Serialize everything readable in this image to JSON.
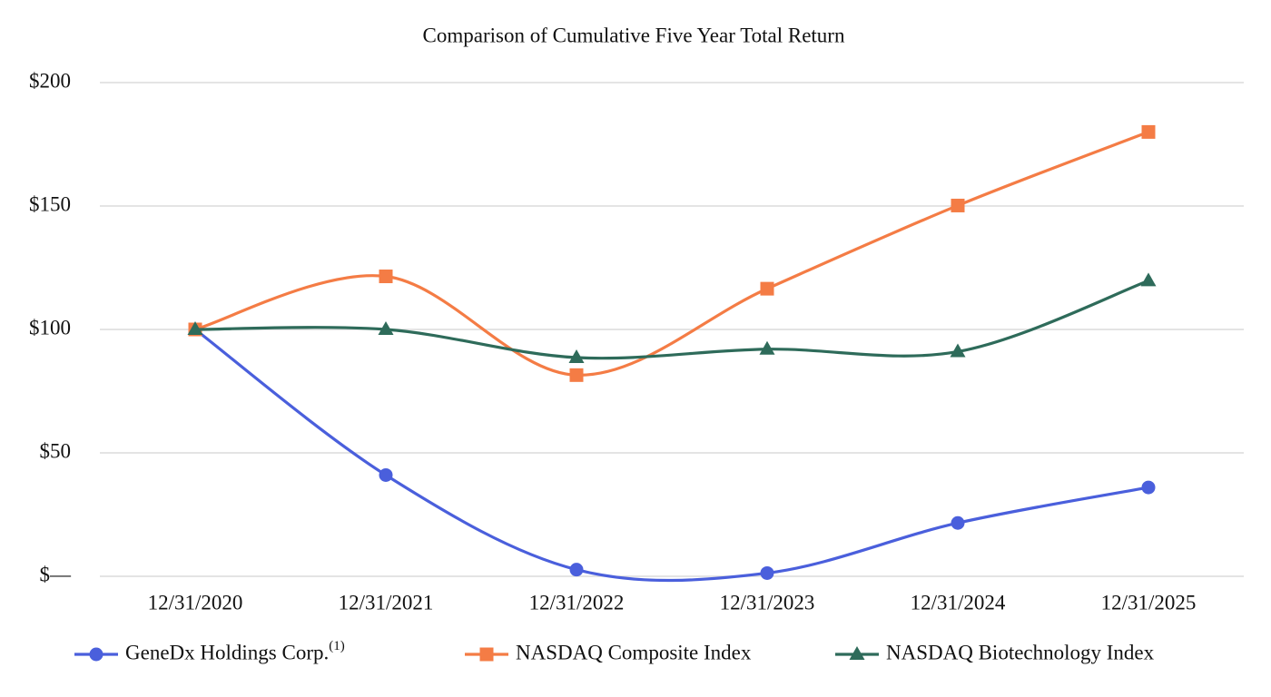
{
  "chart_data": {
    "type": "line",
    "title": "Comparison of Cumulative Five Year Total Return",
    "categories": [
      "12/31/2020",
      "12/31/2021",
      "12/31/2022",
      "12/31/2023",
      "12/31/2024",
      "12/31/2025"
    ],
    "series": [
      {
        "name": "GeneDx Holdings Corp.",
        "name_superscript": "(1)",
        "color": "#4a5fdc",
        "marker": "circle",
        "values": [
          100,
          41,
          2.7,
          1.3,
          21.6,
          36
        ]
      },
      {
        "name": "NASDAQ Composite Index",
        "color": "#f47c45",
        "marker": "square",
        "values": [
          100,
          121.5,
          81.5,
          116.5,
          150.2,
          180
        ]
      },
      {
        "name": "NASDAQ Biotechnology Index",
        "color": "#2e6b5a",
        "marker": "triangle",
        "values": [
          100,
          100,
          88.6,
          92,
          91,
          119.7
        ]
      }
    ],
    "ylim": [
      0,
      200
    ],
    "yticks": [
      {
        "value": 0,
        "label": "$—"
      },
      {
        "value": 50,
        "label": "$50"
      },
      {
        "value": 100,
        "label": "$100"
      },
      {
        "value": 150,
        "label": "$150"
      },
      {
        "value": 200,
        "label": "$200"
      }
    ],
    "grid": true,
    "smooth": true,
    "legend": "bottom"
  }
}
